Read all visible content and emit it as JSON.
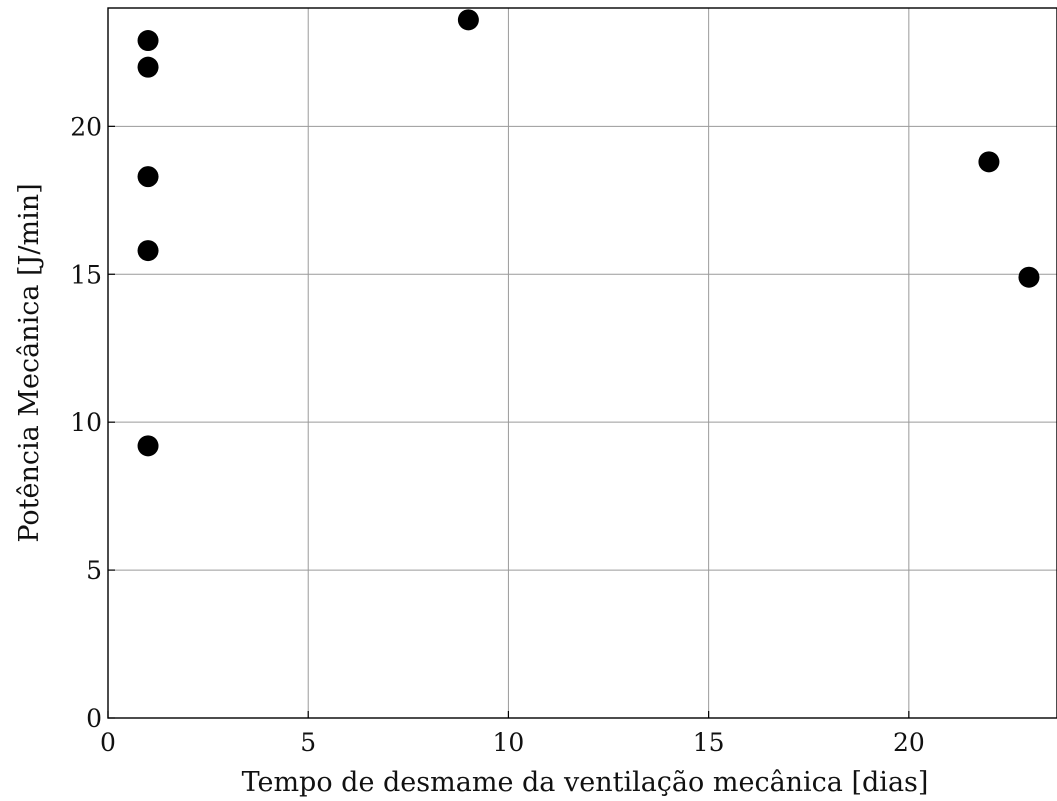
{
  "chart_data": {
    "type": "scatter",
    "title": "",
    "xlabel": "Tempo de desmame da ventilação mecânica [dias]",
    "ylabel": "Potência Mecânica [J/min]",
    "xlim": [
      0,
      23.7
    ],
    "ylim": [
      0,
      24
    ],
    "xticks": [
      0,
      5,
      10,
      15,
      20
    ],
    "yticks": [
      0,
      5,
      10,
      15,
      20
    ],
    "xtick_labels": [
      "0",
      "5",
      "10",
      "15",
      "20"
    ],
    "ytick_labels": [
      "0",
      "5",
      "10",
      "15",
      "20"
    ],
    "grid": true,
    "marker_color": "#000000",
    "series": [
      {
        "x": [
          1,
          1,
          1,
          1,
          1,
          9,
          22,
          23
        ],
        "y": [
          22.9,
          22.0,
          18.3,
          15.8,
          9.2,
          23.6,
          18.8,
          14.9
        ]
      }
    ]
  }
}
